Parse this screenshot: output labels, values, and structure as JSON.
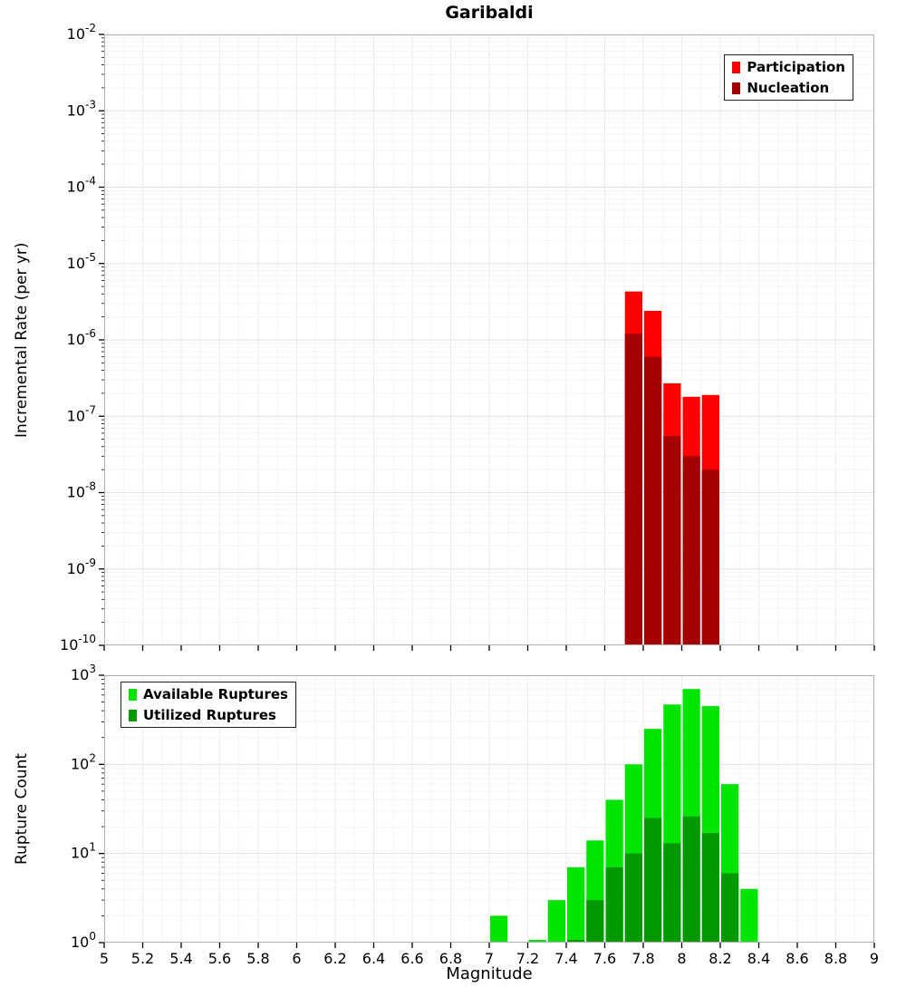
{
  "title": "Garibaldi",
  "colors": {
    "participation": "#ff0000",
    "nucleation": "#a50000",
    "available": "#00e500",
    "utilized": "#009900",
    "grid_major": "#e2e2e2",
    "grid_minor": "#f5f5f5",
    "plot_border": "#b0b0b0"
  },
  "chart_data": [
    {
      "type": "bar",
      "title": "Garibaldi",
      "xlabel": "Magnitude",
      "ylabel": "Incremental Rate (per yr)",
      "x_range": [
        5,
        9
      ],
      "x_tick_step": 0.2,
      "y_scale": "log",
      "y_range": [
        1e-10,
        0.01
      ],
      "bin_width": 0.1,
      "grid": true,
      "legend_position": "top-right",
      "show_x_tick_labels": false,
      "series": [
        {
          "name": "Participation",
          "color_key": "participation",
          "x": [
            7.75,
            7.85,
            7.95,
            8.05,
            8.15
          ],
          "values": [
            4.3e-06,
            2.4e-06,
            2.7e-07,
            1.8e-07,
            1.9e-07
          ]
        },
        {
          "name": "Nucleation",
          "color_key": "nucleation",
          "x": [
            7.75,
            7.85,
            7.95,
            8.05,
            8.15
          ],
          "values": [
            1.2e-06,
            6e-07,
            5.5e-08,
            3e-08,
            2e-08
          ]
        }
      ]
    },
    {
      "type": "bar",
      "xlabel": "Magnitude",
      "ylabel": "Rupture Count",
      "x_range": [
        5,
        9
      ],
      "x_tick_step": 0.2,
      "y_scale": "log",
      "y_range": [
        1,
        1000
      ],
      "bin_width": 0.1,
      "grid": true,
      "legend_position": "top-left",
      "show_x_tick_labels": true,
      "series": [
        {
          "name": "Available Ruptures",
          "color_key": "available",
          "x": [
            7.05,
            7.25,
            7.35,
            7.45,
            7.55,
            7.65,
            7.75,
            7.85,
            7.95,
            8.05,
            8.15,
            8.25,
            8.35
          ],
          "values": [
            2,
            1,
            3,
            7,
            14,
            40,
            100,
            250,
            470,
            700,
            450,
            60,
            4
          ]
        },
        {
          "name": "Utilized Ruptures",
          "color_key": "utilized",
          "x": [
            7.45,
            7.55,
            7.65,
            7.75,
            7.85,
            7.95,
            8.05,
            8.15,
            8.25
          ],
          "values": [
            1,
            3,
            7,
            10,
            25,
            13,
            26,
            17,
            6
          ]
        }
      ]
    }
  ]
}
